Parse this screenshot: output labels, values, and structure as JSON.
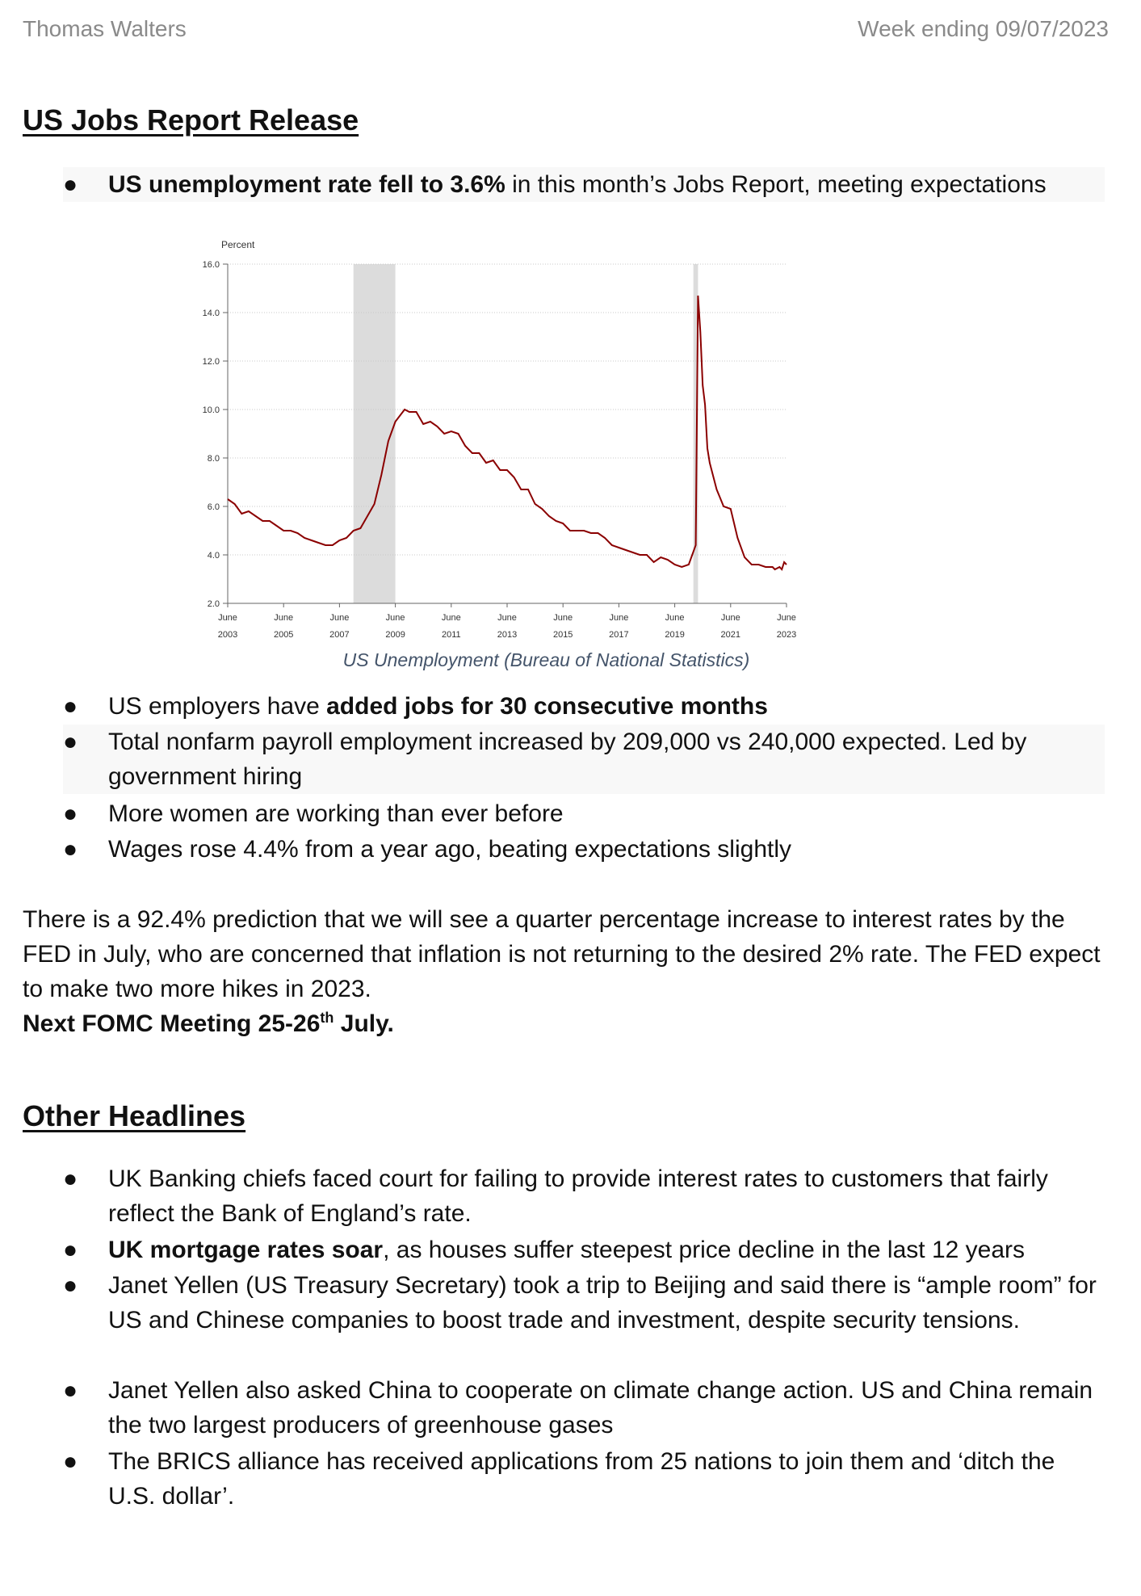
{
  "header": {
    "author": "Thomas Walters",
    "week": "Week ending 09/07/2023"
  },
  "section1": {
    "title": "US Jobs Report Release",
    "bullet1_bold": "US unemployment rate fell to 3.6%",
    "bullet1_rest": " in this month’s Jobs Report, meeting expectations",
    "bullets": [
      {
        "plain": "US employers have ",
        "bold": "added jobs for 30 consecutive months"
      },
      {
        "plain": "Total nonfarm payroll employment increased by 209,000 vs 240,000 expected. Led by government hiring"
      },
      {
        "plain": "More women are working than ever before"
      },
      {
        "plain": "Wages rose 4.4% from a year ago, beating expectations slightly"
      }
    ]
  },
  "chart_caption": "US Unemployment (Bureau of National Statistics)",
  "chart_data": {
    "type": "line",
    "ylabel": "Percent",
    "ylim": [
      2.0,
      16.0
    ],
    "yticks": [
      "2.0",
      "4.0",
      "6.0",
      "8.0",
      "10.0",
      "12.0",
      "14.0",
      "16.0"
    ],
    "xticks": [
      {
        "month": "June",
        "year": "2003"
      },
      {
        "month": "June",
        "year": "2005"
      },
      {
        "month": "June",
        "year": "2007"
      },
      {
        "month": "June",
        "year": "2009"
      },
      {
        "month": "June",
        "year": "2011"
      },
      {
        "month": "June",
        "year": "2013"
      },
      {
        "month": "June",
        "year": "2015"
      },
      {
        "month": "June",
        "year": "2017"
      },
      {
        "month": "June",
        "year": "2019"
      },
      {
        "month": "June",
        "year": "2021"
      },
      {
        "month": "June",
        "year": "2023"
      }
    ],
    "xlim": [
      "2003-06",
      "2023-06"
    ],
    "recessions": [
      [
        "2007-12",
        "2009-06"
      ],
      [
        "2020-02",
        "2020-04"
      ]
    ],
    "grid": "horizontal dotted",
    "series": [
      {
        "color": "#8b0000",
        "points": [
          [
            "2003-06",
            6.3
          ],
          [
            "2003-09",
            6.1
          ],
          [
            "2003-12",
            5.7
          ],
          [
            "2004-03",
            5.8
          ],
          [
            "2004-06",
            5.6
          ],
          [
            "2004-09",
            5.4
          ],
          [
            "2004-12",
            5.4
          ],
          [
            "2005-03",
            5.2
          ],
          [
            "2005-06",
            5.0
          ],
          [
            "2005-09",
            5.0
          ],
          [
            "2005-12",
            4.9
          ],
          [
            "2006-03",
            4.7
          ],
          [
            "2006-06",
            4.6
          ],
          [
            "2006-09",
            4.5
          ],
          [
            "2006-12",
            4.4
          ],
          [
            "2007-03",
            4.4
          ],
          [
            "2007-06",
            4.6
          ],
          [
            "2007-09",
            4.7
          ],
          [
            "2007-12",
            5.0
          ],
          [
            "2008-03",
            5.1
          ],
          [
            "2008-06",
            5.6
          ],
          [
            "2008-09",
            6.1
          ],
          [
            "2008-12",
            7.3
          ],
          [
            "2009-03",
            8.7
          ],
          [
            "2009-06",
            9.5
          ],
          [
            "2009-10",
            10.0
          ],
          [
            "2009-12",
            9.9
          ],
          [
            "2010-03",
            9.9
          ],
          [
            "2010-06",
            9.4
          ],
          [
            "2010-09",
            9.5
          ],
          [
            "2010-12",
            9.3
          ],
          [
            "2011-03",
            9.0
          ],
          [
            "2011-06",
            9.1
          ],
          [
            "2011-09",
            9.0
          ],
          [
            "2011-12",
            8.5
          ],
          [
            "2012-03",
            8.2
          ],
          [
            "2012-06",
            8.2
          ],
          [
            "2012-09",
            7.8
          ],
          [
            "2012-12",
            7.9
          ],
          [
            "2013-03",
            7.5
          ],
          [
            "2013-06",
            7.5
          ],
          [
            "2013-09",
            7.2
          ],
          [
            "2013-12",
            6.7
          ],
          [
            "2014-03",
            6.7
          ],
          [
            "2014-06",
            6.1
          ],
          [
            "2014-09",
            5.9
          ],
          [
            "2014-12",
            5.6
          ],
          [
            "2015-03",
            5.4
          ],
          [
            "2015-06",
            5.3
          ],
          [
            "2015-09",
            5.0
          ],
          [
            "2015-12",
            5.0
          ],
          [
            "2016-03",
            5.0
          ],
          [
            "2016-06",
            4.9
          ],
          [
            "2016-09",
            4.9
          ],
          [
            "2016-12",
            4.7
          ],
          [
            "2017-03",
            4.4
          ],
          [
            "2017-06",
            4.3
          ],
          [
            "2017-09",
            4.2
          ],
          [
            "2017-12",
            4.1
          ],
          [
            "2018-03",
            4.0
          ],
          [
            "2018-06",
            4.0
          ],
          [
            "2018-09",
            3.7
          ],
          [
            "2018-12",
            3.9
          ],
          [
            "2019-03",
            3.8
          ],
          [
            "2019-06",
            3.6
          ],
          [
            "2019-09",
            3.5
          ],
          [
            "2019-12",
            3.6
          ],
          [
            "2020-03",
            4.4
          ],
          [
            "2020-04",
            14.7
          ],
          [
            "2020-05",
            13.2
          ],
          [
            "2020-06",
            11.0
          ],
          [
            "2020-07",
            10.2
          ],
          [
            "2020-08",
            8.4
          ],
          [
            "2020-09",
            7.8
          ],
          [
            "2020-12",
            6.7
          ],
          [
            "2021-03",
            6.0
          ],
          [
            "2021-06",
            5.9
          ],
          [
            "2021-09",
            4.7
          ],
          [
            "2021-12",
            3.9
          ],
          [
            "2022-03",
            3.6
          ],
          [
            "2022-06",
            3.6
          ],
          [
            "2022-09",
            3.5
          ],
          [
            "2022-12",
            3.5
          ],
          [
            "2023-01",
            3.4
          ],
          [
            "2023-03",
            3.5
          ],
          [
            "2023-04",
            3.4
          ],
          [
            "2023-05",
            3.7
          ],
          [
            "2023-06",
            3.6
          ]
        ]
      }
    ]
  },
  "paragraph": {
    "text": "There is a 92.4% prediction that we will see a quarter percentage increase to interest rates by the FED in July, who are concerned that inflation is not returning to the desired 2% rate. The FED expect to make two more hikes in 2023.",
    "meeting_a": "Next FOMC Meeting 25-26",
    "meeting_sup": "th",
    "meeting_b": " July."
  },
  "section2": {
    "title": "Other Headlines",
    "bullets": [
      {
        "plain": "UK Banking chiefs faced court for failing to provide interest rates to customers that fairly reflect the Bank of England’s rate."
      },
      {
        "bold": "UK mortgage rates soar",
        "plain": ", as houses suffer steepest price decline in the last 12 years"
      },
      {
        "plain": "Janet Yellen (US Treasury Secretary) took a trip to Beijing and said there is “ample room” for US and Chinese companies to boost trade and investment, despite security tensions."
      },
      {
        "plain": "Janet Yellen also asked China to cooperate on climate change action. US and China remain the two largest producers of greenhouse gases"
      },
      {
        "plain": "The BRICS alliance has received applications from 25 nations to join them and ‘ditch the U.S. dollar’."
      }
    ]
  },
  "bullet_glyph": "●"
}
